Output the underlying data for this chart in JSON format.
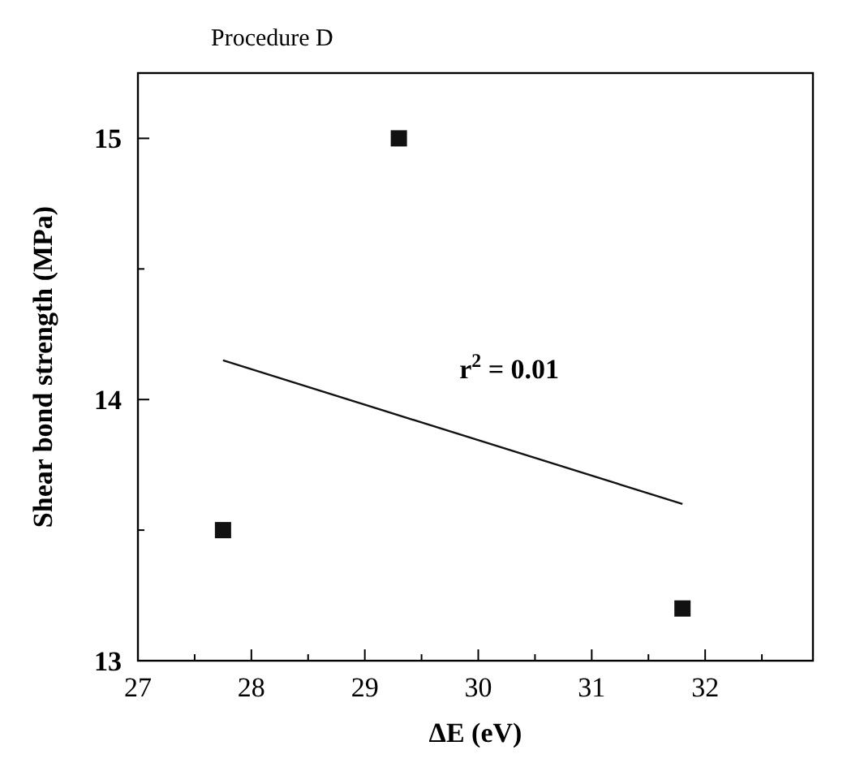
{
  "chart_data": {
    "type": "scatter",
    "title": "Procedure D",
    "xlabel": "ΔE (eV)",
    "ylabel": "Shear bond strength (MPa)",
    "xlim": [
      27,
      32.95
    ],
    "ylim": [
      13,
      15.25
    ],
    "xticks": [
      27,
      {
        "value": 27.5,
        "label": null
      },
      28,
      {
        "value": 28.5,
        "label": null
      },
      29,
      {
        "value": 29.5,
        "label": null
      },
      30,
      {
        "value": 30.5,
        "label": null
      },
      31,
      {
        "value": 31.5,
        "label": null
      },
      32,
      {
        "value": 32.5,
        "label": null
      }
    ],
    "yticks": [
      13,
      {
        "value": 13.5,
        "label": null
      },
      14,
      {
        "value": 14.5,
        "label": null
      },
      15
    ],
    "grid": false,
    "series": [
      {
        "marker": "square",
        "color": "#111111",
        "x": [
          27.75,
          29.3,
          31.8
        ],
        "values": [
          13.5,
          15.0,
          13.2
        ]
      },
      {
        "type": "line",
        "color": "#111111",
        "x": [
          27.75,
          31.8
        ],
        "values": [
          14.15,
          13.6
        ]
      }
    ],
    "annotations": [
      "r$^{2}$ = 0.01"
    ]
  }
}
